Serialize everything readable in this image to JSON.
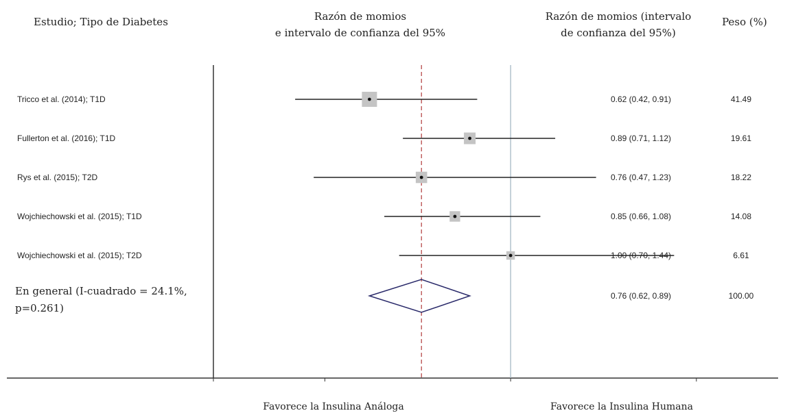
{
  "headers": {
    "study": "Estudio; Tipo de Diabetes",
    "or_line1": "Razón de momios",
    "or_line2": "e intervalo de confianza del 95%",
    "ci_line1": "Razón de momios (intervalo",
    "ci_line2": "de confianza del 95%)",
    "weight": "Peso (%)"
  },
  "chart_data": {
    "type": "forest",
    "xlim": [
      0.2,
      1.6
    ],
    "null_line": 1.0,
    "pooled_line": 0.76,
    "studies": [
      {
        "label": "Tricco et al. (2014); T1D",
        "or": 0.62,
        "lo": 0.42,
        "hi": 0.91,
        "ci_text": "0.62 (0.42, 0.91)",
        "weight": 41.49,
        "weight_text": "41.49"
      },
      {
        "label": "Fullerton et al. (2016); T1D",
        "or": 0.89,
        "lo": 0.71,
        "hi": 1.12,
        "ci_text": "0.89 (0.71, 1.12)",
        "weight": 19.61,
        "weight_text": "19.61"
      },
      {
        "label": "Rys et al. (2015); T2D",
        "or": 0.76,
        "lo": 0.47,
        "hi": 1.23,
        "ci_text": "0.76 (0.47, 1.23)",
        "weight": 18.22,
        "weight_text": "18.22"
      },
      {
        "label": "Wojchiechowski et al. (2015); T1D",
        "or": 0.85,
        "lo": 0.66,
        "hi": 1.08,
        "ci_text": "0.85 (0.66, 1.08)",
        "weight": 14.08,
        "weight_text": "14.08"
      },
      {
        "label": "Wojchiechowski et al. (2015); T2D",
        "or": 1.0,
        "lo": 0.7,
        "hi": 1.44,
        "ci_text": "1.00 (0.70, 1.44)",
        "weight": 6.61,
        "weight_text": "6.61"
      }
    ],
    "overall": {
      "label_line1": "En general (I-cuadrado = 24.1%,",
      "label_line2": "p=0.261)",
      "or": 0.76,
      "lo": 0.62,
      "hi": 0.89,
      "ci_text": "0.76 (0.62, 0.89)",
      "weight_text": "100.00"
    },
    "x_ticks": [
      0.2,
      0.5,
      1.0,
      1.5
    ],
    "favours_left": "Favorece la Insulina Análoga",
    "favours_right": "Favorece la Insulina Humana"
  },
  "colors": {
    "ci_line": "#222222",
    "weight_box": "#c4c4c4",
    "pooled_line": "#b03a3a",
    "null_line": "#9fb3bf",
    "diamond": "#2a2a6a",
    "axis": "#333333"
  }
}
